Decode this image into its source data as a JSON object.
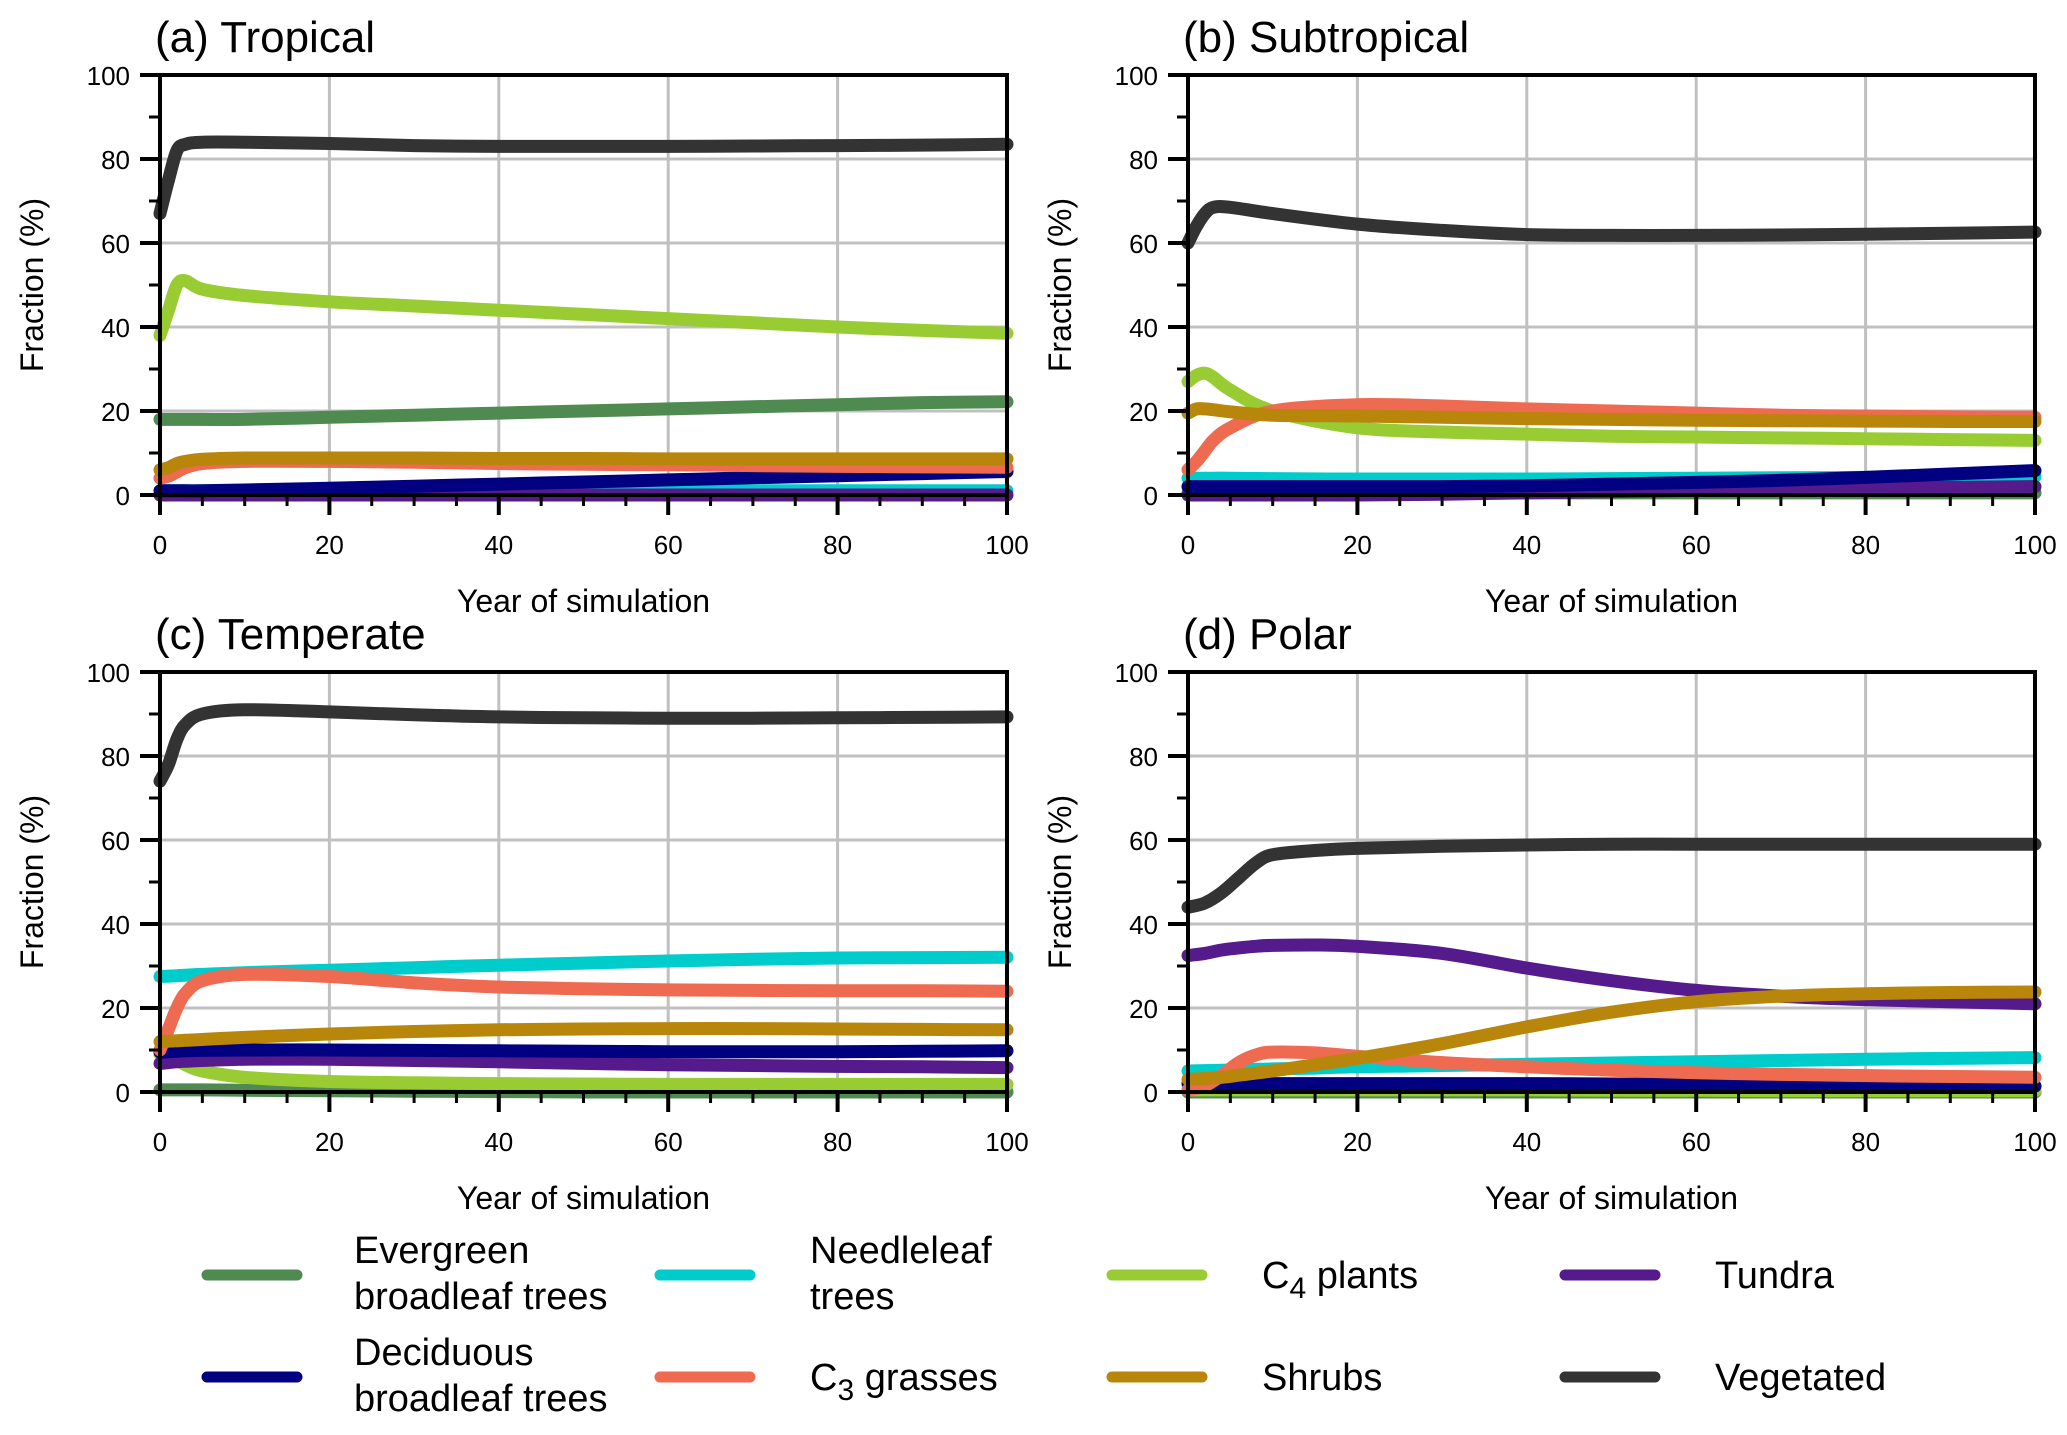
{
  "figure": {
    "legend": [
      {
        "key": "evergreen",
        "lines": [
          "Evergreen",
          "broadleaf trees"
        ],
        "color": "#4f8a51"
      },
      {
        "key": "needleleaf",
        "lines": [
          "Needleleaf",
          "trees"
        ],
        "color": "#00cccc"
      },
      {
        "key": "c4",
        "lines": [
          "C",
          "4",
          " plants"
        ],
        "subscript": true,
        "color": "#99cc33"
      },
      {
        "key": "tundra",
        "lines": [
          "Tundra"
        ],
        "color": "#551a8b"
      },
      {
        "key": "deciduous",
        "lines": [
          "Deciduous",
          "broadleaf trees"
        ],
        "color": "#000080"
      },
      {
        "key": "c3",
        "lines": [
          "C",
          "3",
          " grasses"
        ],
        "subscript": true,
        "color": "#ee6a50"
      },
      {
        "key": "shrubs",
        "lines": [
          "Shrubs"
        ],
        "color": "#b8860b"
      },
      {
        "key": "vegetated",
        "lines": [
          "Vegetated"
        ],
        "color": "#333333"
      }
    ]
  },
  "chart_data": [
    {
      "type": "line",
      "title": "(a) Tropical",
      "xlabel": "Year of simulation",
      "ylabel": "Fraction (%)",
      "xlim": [
        0,
        100
      ],
      "ylim": [
        0,
        100
      ],
      "xticks": [
        0,
        20,
        40,
        60,
        80,
        100
      ],
      "yticks": [
        0,
        20,
        40,
        60,
        80,
        100
      ],
      "grid": true,
      "x": [
        0,
        1,
        2,
        3,
        5,
        10,
        20,
        30,
        40,
        50,
        60,
        70,
        80,
        90,
        100
      ],
      "series": [
        {
          "name": "Evergreen broadleaf trees",
          "key": "evergreen",
          "values": [
            18,
            18,
            18,
            18,
            18,
            18,
            18.5,
            19,
            19.5,
            20,
            20.5,
            21,
            21.5,
            22,
            22.2
          ]
        },
        {
          "name": "Needleleaf trees",
          "key": "needleleaf",
          "values": [
            1,
            1,
            1,
            1,
            1,
            1,
            1,
            1,
            1,
            1,
            1,
            1,
            1,
            1,
            1
          ]
        },
        {
          "name": "C4 plants",
          "key": "c4",
          "values": [
            38,
            44,
            50,
            51,
            49,
            47.5,
            46,
            45,
            44,
            43,
            42,
            41,
            40,
            39.2,
            38.5
          ]
        },
        {
          "name": "Tundra",
          "key": "tundra",
          "values": [
            0,
            0,
            0,
            0,
            0,
            0,
            0,
            0,
            0,
            0,
            0,
            0,
            0,
            0,
            0
          ]
        },
        {
          "name": "Deciduous broadleaf trees",
          "key": "deciduous",
          "values": [
            1,
            1,
            1,
            1,
            1,
            1.2,
            1.6,
            2.1,
            2.6,
            3.1,
            3.6,
            4.1,
            4.6,
            5.1,
            5.6
          ]
        },
        {
          "name": "C3 grasses",
          "key": "c3",
          "values": [
            4,
            4.5,
            5.5,
            6.5,
            7.5,
            8,
            8,
            7.8,
            7.5,
            7.3,
            7.2,
            7,
            6.8,
            6.7,
            6.6
          ]
        },
        {
          "name": "Shrubs",
          "key": "shrubs",
          "values": [
            6,
            6.5,
            7.5,
            8,
            8.5,
            8.8,
            8.8,
            8.8,
            8.7,
            8.7,
            8.6,
            8.6,
            8.6,
            8.6,
            8.6
          ]
        },
        {
          "name": "Vegetated",
          "key": "vegetated",
          "values": [
            67,
            75,
            82,
            83.5,
            84,
            84,
            83.7,
            83.2,
            83,
            83,
            83,
            83.1,
            83.2,
            83.3,
            83.5
          ]
        }
      ]
    },
    {
      "type": "line",
      "title": "(b) Subtropical",
      "xlabel": "Year of simulation",
      "ylabel": "Fraction (%)",
      "xlim": [
        0,
        100
      ],
      "ylim": [
        0,
        100
      ],
      "xticks": [
        0,
        20,
        40,
        60,
        80,
        100
      ],
      "yticks": [
        0,
        20,
        40,
        60,
        80,
        100
      ],
      "grid": true,
      "x": [
        0,
        1,
        2,
        3,
        5,
        10,
        20,
        30,
        40,
        50,
        60,
        70,
        80,
        90,
        100
      ],
      "series": [
        {
          "name": "Evergreen broadleaf trees",
          "key": "evergreen",
          "values": [
            0.5,
            0.5,
            0.5,
            0.5,
            0.5,
            0.5,
            0.5,
            0.5,
            0.5,
            0.5,
            0.5,
            0.5,
            0.5,
            0.5,
            0.5
          ]
        },
        {
          "name": "Needleleaf trees",
          "key": "needleleaf",
          "values": [
            4,
            4,
            4,
            4,
            4,
            3.9,
            3.8,
            3.8,
            3.8,
            3.9,
            4,
            4.1,
            4.2,
            4.3,
            4.4
          ]
        },
        {
          "name": "C4 plants",
          "key": "c4",
          "values": [
            27,
            28.5,
            29,
            28,
            25,
            20,
            16,
            15,
            14.5,
            14,
            13.8,
            13.6,
            13.4,
            13.2,
            13
          ]
        },
        {
          "name": "Tundra",
          "key": "tundra",
          "values": [
            0,
            0,
            0,
            0,
            0,
            0,
            0,
            0.2,
            0.5,
            0.8,
            1.1,
            1.4,
            1.6,
            1.8,
            2
          ]
        },
        {
          "name": "Deciduous broadleaf trees",
          "key": "deciduous",
          "values": [
            2,
            2,
            2,
            2,
            2,
            2,
            2,
            2,
            2.2,
            2.6,
            3,
            3.5,
            4.2,
            5,
            5.8
          ]
        },
        {
          "name": "C3 grasses",
          "key": "c3",
          "values": [
            6,
            8,
            10.5,
            13,
            16,
            20,
            21.5,
            21.2,
            20.5,
            20,
            19.5,
            19,
            18.8,
            18.6,
            18.5
          ]
        },
        {
          "name": "Shrubs",
          "key": "shrubs",
          "values": [
            19.5,
            20.5,
            20.5,
            20.3,
            19.8,
            19,
            18.8,
            18.5,
            18.2,
            18,
            17.8,
            17.7,
            17.6,
            17.5,
            17.5
          ]
        },
        {
          "name": "Vegetated",
          "key": "vegetated",
          "values": [
            60,
            64,
            67,
            68.5,
            68.5,
            67,
            64.5,
            63,
            62,
            61.8,
            61.8,
            61.9,
            62.1,
            62.3,
            62.6
          ]
        }
      ]
    },
    {
      "type": "line",
      "title": "(c) Temperate",
      "xlabel": "Year of simulation",
      "ylabel": "Fraction (%)",
      "xlim": [
        0,
        100
      ],
      "ylim": [
        0,
        100
      ],
      "xticks": [
        0,
        20,
        40,
        60,
        80,
        100
      ],
      "yticks": [
        0,
        20,
        40,
        60,
        80,
        100
      ],
      "grid": true,
      "x": [
        0,
        1,
        2,
        3,
        5,
        10,
        20,
        30,
        40,
        50,
        60,
        70,
        80,
        90,
        100
      ],
      "series": [
        {
          "name": "Evergreen broadleaf trees",
          "key": "evergreen",
          "values": [
            0.5,
            0.5,
            0.5,
            0.5,
            0.5,
            0.4,
            0.3,
            0.2,
            0.1,
            0,
            0,
            0,
            0,
            0,
            0
          ]
        },
        {
          "name": "Needleleaf trees",
          "key": "needleleaf",
          "values": [
            27.5,
            27.6,
            27.7,
            27.8,
            28,
            28.4,
            29,
            29.6,
            30.2,
            30.7,
            31.2,
            31.6,
            31.9,
            32,
            32.1
          ]
        },
        {
          "name": "C4 plants",
          "key": "c4",
          "values": [
            9,
            8.5,
            7.5,
            6.5,
            5,
            3.5,
            2.5,
            2.2,
            2,
            1.9,
            1.8,
            1.8,
            1.8,
            1.8,
            1.8
          ]
        },
        {
          "name": "Tundra",
          "key": "tundra",
          "values": [
            6.8,
            7,
            7.2,
            7.3,
            7.5,
            7.8,
            7.8,
            7.5,
            7.2,
            6.8,
            6.5,
            6.3,
            6.1,
            6,
            5.8
          ]
        },
        {
          "name": "Deciduous broadleaf trees",
          "key": "deciduous",
          "values": [
            9.5,
            9.6,
            9.7,
            9.8,
            9.9,
            10,
            10,
            9.9,
            9.8,
            9.7,
            9.6,
            9.6,
            9.6,
            9.7,
            9.8
          ]
        },
        {
          "name": "C3 grasses",
          "key": "c3",
          "values": [
            10,
            15,
            20,
            23.5,
            26.5,
            28,
            27.5,
            26,
            25,
            24.6,
            24.3,
            24.2,
            24.1,
            24.1,
            24
          ]
        },
        {
          "name": "Shrubs",
          "key": "shrubs",
          "values": [
            12,
            12.1,
            12.2,
            12.3,
            12.5,
            13,
            13.8,
            14.4,
            14.8,
            15,
            15.1,
            15.1,
            15,
            14.9,
            14.8
          ]
        },
        {
          "name": "Vegetated",
          "key": "vegetated",
          "values": [
            74,
            78,
            84,
            87.5,
            90,
            91,
            90.5,
            89.8,
            89.3,
            89.1,
            89,
            89,
            89.1,
            89.2,
            89.3
          ]
        }
      ]
    },
    {
      "type": "line",
      "title": "(d) Polar",
      "xlabel": "Year of simulation",
      "ylabel": "Fraction (%)",
      "xlim": [
        0,
        100
      ],
      "ylim": [
        0,
        100
      ],
      "xticks": [
        0,
        20,
        40,
        60,
        80,
        100
      ],
      "yticks": [
        0,
        20,
        40,
        60,
        80,
        100
      ],
      "grid": true,
      "x": [
        0,
        2,
        4,
        6,
        8,
        10,
        15,
        20,
        30,
        40,
        50,
        60,
        70,
        80,
        90,
        100
      ],
      "series": [
        {
          "name": "Evergreen broadleaf trees",
          "key": "evergreen",
          "values": [
            0,
            0,
            0,
            0,
            0,
            0,
            0,
            0,
            0,
            0,
            0,
            0,
            0,
            0,
            0,
            0
          ]
        },
        {
          "name": "Needleleaf trees",
          "key": "needleleaf",
          "values": [
            5,
            5.1,
            5.2,
            5.3,
            5.4,
            5.5,
            5.7,
            6,
            6.3,
            6.6,
            6.9,
            7.2,
            7.5,
            7.8,
            8,
            8.2
          ]
        },
        {
          "name": "C4 plants",
          "key": "c4",
          "values": [
            0.5,
            0.5,
            0.5,
            0.5,
            0.5,
            0.5,
            0.5,
            0.5,
            0.5,
            0.5,
            0.4,
            0.4,
            0.3,
            0.3,
            0.3,
            0.3
          ]
        },
        {
          "name": "Tundra",
          "key": "tundra",
          "values": [
            32.5,
            33,
            33.8,
            34.3,
            34.7,
            34.9,
            35,
            34.7,
            33,
            29.5,
            26.5,
            24.2,
            22.8,
            22,
            21.5,
            21
          ]
        },
        {
          "name": "Deciduous broadleaf trees",
          "key": "deciduous",
          "values": [
            2,
            2,
            2,
            2,
            2,
            2,
            2,
            2,
            2,
            2,
            1.9,
            1.8,
            1.7,
            1.6,
            1.5,
            1.4
          ]
        },
        {
          "name": "C3 grasses",
          "key": "c3",
          "values": [
            0.5,
            1.5,
            4,
            7,
            8.8,
            9.5,
            9.3,
            8.5,
            7,
            6,
            5.2,
            4.6,
            4.2,
            3.9,
            3.7,
            3.5
          ]
        },
        {
          "name": "Shrubs",
          "key": "shrubs",
          "values": [
            3,
            3.2,
            3.5,
            4,
            4.5,
            5,
            6.5,
            8,
            11.5,
            15.5,
            19,
            21.5,
            22.8,
            23.4,
            23.7,
            23.8
          ]
        },
        {
          "name": "Vegetated",
          "key": "vegetated",
          "values": [
            44,
            45,
            47.5,
            51,
            54.5,
            56.5,
            57.5,
            58,
            58.5,
            58.8,
            59,
            59,
            59,
            59,
            59,
            59
          ]
        }
      ]
    }
  ]
}
